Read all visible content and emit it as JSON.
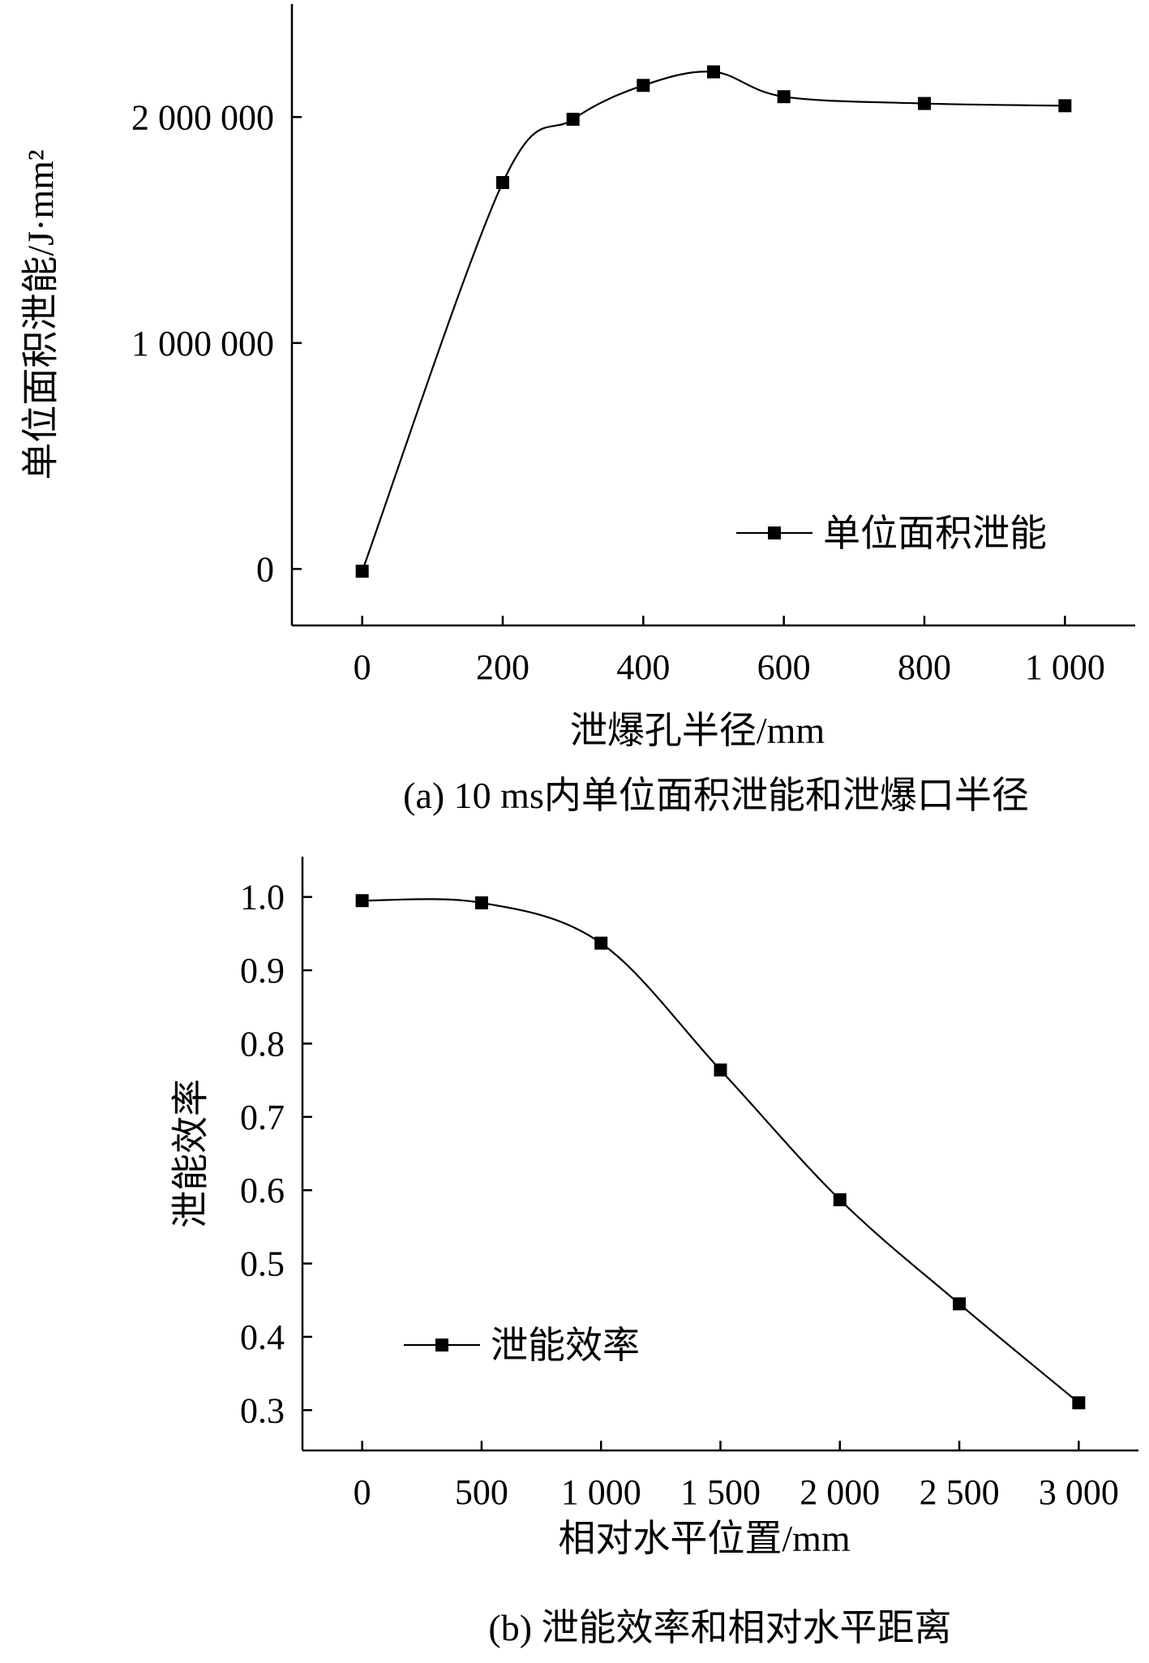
{
  "chart_data": [
    {
      "type": "line",
      "caption": "(a) 10 ms内单位面积泄能和泄爆口半径",
      "xlabel": "泄爆孔半径/mm",
      "ylabel": "单位面积泄能/J·mm²",
      "xlim": [
        -100,
        1100
      ],
      "ylim": [
        -250000,
        2500000
      ],
      "xticks": [
        0,
        200,
        400,
        600,
        800,
        1000
      ],
      "xtick_labels": [
        "0",
        "200",
        "400",
        "600",
        "800",
        "1 000"
      ],
      "yticks": [
        0,
        1000000,
        2000000
      ],
      "ytick_labels": [
        "0",
        "1 000 000",
        "2 000 000"
      ],
      "grid": false,
      "legend_position": "bottom-right",
      "series": [
        {
          "name": "单位面积泄能",
          "x": [
            0,
            200,
            300,
            400,
            500,
            600,
            800,
            1000
          ],
          "values": [
            -10000,
            1710000,
            1990000,
            2140000,
            2200000,
            2090000,
            2060000,
            2050000
          ]
        }
      ]
    },
    {
      "type": "line",
      "caption": "(b) 泄能效率和相对水平距离",
      "xlabel": "相对水平位置/mm",
      "ylabel": "泄能效率",
      "xlim": [
        -250,
        3250
      ],
      "ylim": [
        0.245,
        1.055
      ],
      "xticks": [
        0,
        500,
        1000,
        1500,
        2000,
        2500,
        3000
      ],
      "xtick_labels": [
        "0",
        "500",
        "1 000",
        "1 500",
        "2 000",
        "2 500",
        "3 000"
      ],
      "yticks": [
        0.3,
        0.4,
        0.5,
        0.6,
        0.7,
        0.8,
        0.9,
        1.0
      ],
      "ytick_labels": [
        "0.3",
        "0.4",
        "0.5",
        "0.6",
        "0.7",
        "0.8",
        "0.9",
        "1.0"
      ],
      "grid": false,
      "legend_position": "bottom-left",
      "series": [
        {
          "name": "泄能效率",
          "x": [
            0,
            500,
            1000,
            1500,
            2000,
            2500,
            3000
          ],
          "values": [
            0.995,
            0.992,
            0.937,
            0.764,
            0.587,
            0.445,
            0.31
          ]
        }
      ]
    }
  ]
}
